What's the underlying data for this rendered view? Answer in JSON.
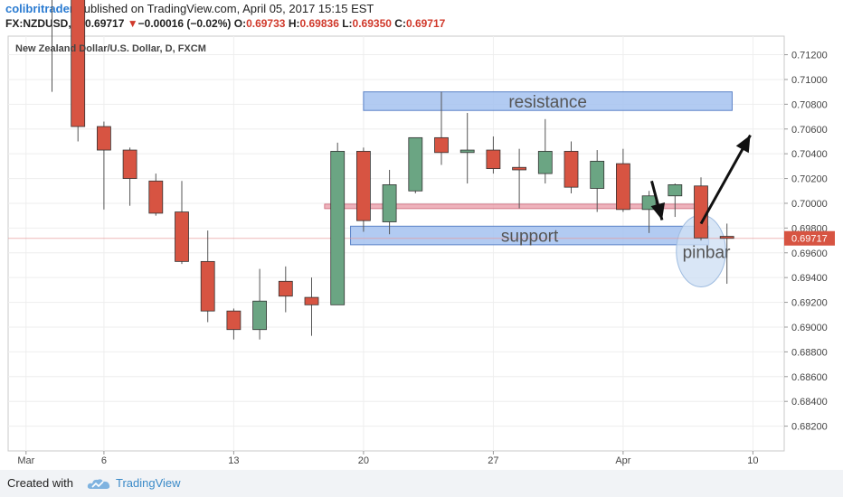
{
  "header": {
    "author": "colibritrader",
    "published_text": "published on TradingView.com, April 05, 2017 15:15 EST",
    "symbol": "FX:NZDUSD, D",
    "last": "0.69717",
    "change_arrow": "▼",
    "change": "−0.00016 (−0.02%)",
    "o_label": "O:",
    "o_value": "0.69733",
    "h_label": "H:",
    "h_value": "0.69836",
    "l_label": "L:",
    "l_value": "0.69350",
    "c_label": "C:",
    "c_value": "0.69717"
  },
  "footer": {
    "created_with": "Created with",
    "brand": "TradingView",
    "logo_icon": "tradingview-cloud-icon"
  },
  "chart_data": {
    "type": "candlestick",
    "title": "New Zealand Dollar/U.S. Dollar, D, FXCM",
    "ylim": [
      0.68,
      0.7135
    ],
    "yticks": [
      "0.71200",
      "0.71000",
      "0.70800",
      "0.70600",
      "0.70400",
      "0.70200",
      "0.70000",
      "0.69800",
      "0.69600",
      "0.69400",
      "0.69200",
      "0.69000",
      "0.68800",
      "0.68600",
      "0.68400",
      "0.68200"
    ],
    "xticks": [
      {
        "label": "Mar",
        "bar": -1
      },
      {
        "label": "6",
        "bar": 2
      },
      {
        "label": "13",
        "bar": 7
      },
      {
        "label": "20",
        "bar": 12
      },
      {
        "label": "27",
        "bar": 17
      },
      {
        "label": "Apr",
        "bar": 22
      },
      {
        "label": "10",
        "bar": 27
      }
    ],
    "last_price_label": "0.69717",
    "colors": {
      "up": "#6ba583",
      "down": "#d75442",
      "wick": "#555555",
      "zone": "#a4c2f0",
      "zone_border": "#5b82c7",
      "pivot_line": "#e89aa5",
      "ellipse": "#cfe0f4"
    },
    "candles": [
      {
        "date": "2017-02-28",
        "o": 0.7205,
        "h": 0.7215,
        "l": 0.709,
        "c": 0.7196
      },
      {
        "date": "2017-03-01",
        "o": 0.719,
        "h": 0.72,
        "l": 0.705,
        "c": 0.7062
      },
      {
        "date": "2017-03-02",
        "o": 0.7062,
        "h": 0.7066,
        "l": 0.6995,
        "c": 0.7043
      },
      {
        "date": "2017-03-03",
        "o": 0.7043,
        "h": 0.7045,
        "l": 0.6998,
        "c": 0.702
      },
      {
        "date": "2017-03-06",
        "o": 0.7018,
        "h": 0.7024,
        "l": 0.699,
        "c": 0.6992
      },
      {
        "date": "2017-03-07",
        "o": 0.6993,
        "h": 0.7018,
        "l": 0.6951,
        "c": 0.6953
      },
      {
        "date": "2017-03-08",
        "o": 0.6953,
        "h": 0.6978,
        "l": 0.6904,
        "c": 0.6913
      },
      {
        "date": "2017-03-09",
        "o": 0.6913,
        "h": 0.6915,
        "l": 0.689,
        "c": 0.6898
      },
      {
        "date": "2017-03-10",
        "o": 0.6898,
        "h": 0.6947,
        "l": 0.689,
        "c": 0.6921
      },
      {
        "date": "2017-03-13",
        "o": 0.6937,
        "h": 0.6949,
        "l": 0.6912,
        "c": 0.6925
      },
      {
        "date": "2017-03-14",
        "o": 0.6924,
        "h": 0.694,
        "l": 0.6893,
        "c": 0.6918
      },
      {
        "date": "2017-03-15",
        "o": 0.6918,
        "h": 0.7049,
        "l": 0.6918,
        "c": 0.7042
      },
      {
        "date": "2017-03-16",
        "o": 0.7042,
        "h": 0.7045,
        "l": 0.6977,
        "c": 0.6986
      },
      {
        "date": "2017-03-17",
        "o": 0.6985,
        "h": 0.7027,
        "l": 0.6975,
        "c": 0.7015
      },
      {
        "date": "2017-03-20",
        "o": 0.701,
        "h": 0.7053,
        "l": 0.7008,
        "c": 0.7053
      },
      {
        "date": "2017-03-21",
        "o": 0.7053,
        "h": 0.709,
        "l": 0.7031,
        "c": 0.7041
      },
      {
        "date": "2017-03-22",
        "o": 0.7041,
        "h": 0.7073,
        "l": 0.7016,
        "c": 0.7043
      },
      {
        "date": "2017-03-23",
        "o": 0.7043,
        "h": 0.7054,
        "l": 0.7024,
        "c": 0.7028
      },
      {
        "date": "2017-03-24",
        "o": 0.7029,
        "h": 0.7044,
        "l": 0.6996,
        "c": 0.7027
      },
      {
        "date": "2017-03-27",
        "o": 0.7024,
        "h": 0.7068,
        "l": 0.7016,
        "c": 0.7042
      },
      {
        "date": "2017-03-28",
        "o": 0.7042,
        "h": 0.705,
        "l": 0.7008,
        "c": 0.7013
      },
      {
        "date": "2017-03-29",
        "o": 0.7012,
        "h": 0.7043,
        "l": 0.6993,
        "c": 0.7034
      },
      {
        "date": "2017-03-30",
        "o": 0.7032,
        "h": 0.7044,
        "l": 0.6993,
        "c": 0.6995
      },
      {
        "date": "2017-03-31",
        "o": 0.6995,
        "h": 0.701,
        "l": 0.6976,
        "c": 0.7006
      },
      {
        "date": "2017-04-03",
        "o": 0.7006,
        "h": 0.7016,
        "l": 0.6989,
        "c": 0.7015
      },
      {
        "date": "2017-04-04",
        "o": 0.7014,
        "h": 0.7021,
        "l": 0.697,
        "c": 0.6972
      },
      {
        "date": "2017-04-05",
        "o": 0.69733,
        "h": 0.69836,
        "l": 0.6935,
        "c": 0.69717
      }
    ],
    "annotations": [
      {
        "type": "zone",
        "text": "resistance",
        "y_top": 0.709,
        "y_bottom": 0.7075,
        "bar_from": 12,
        "bar_to": 26.2
      },
      {
        "type": "zone",
        "text": "support",
        "y_top": 0.69815,
        "y_bottom": 0.69665,
        "bar_from": 11.5,
        "bar_to": 25.3
      },
      {
        "type": "line",
        "y": 0.69975,
        "bar_from": 10.5,
        "bar_to": 25.0
      },
      {
        "type": "ellipse",
        "text": "pinbar",
        "bar": 25.0,
        "y_center": 0.69615,
        "bar_radius": 0.95,
        "y_radius": 0.0029
      },
      {
        "type": "arrow",
        "from_bar": 23.1,
        "from_y": 0.7018,
        "to_bar": 23.5,
        "to_y": 0.69865
      },
      {
        "type": "arrow",
        "from_bar": 25.0,
        "from_y": 0.69835,
        "to_bar": 26.9,
        "to_y": 0.7055
      }
    ]
  }
}
